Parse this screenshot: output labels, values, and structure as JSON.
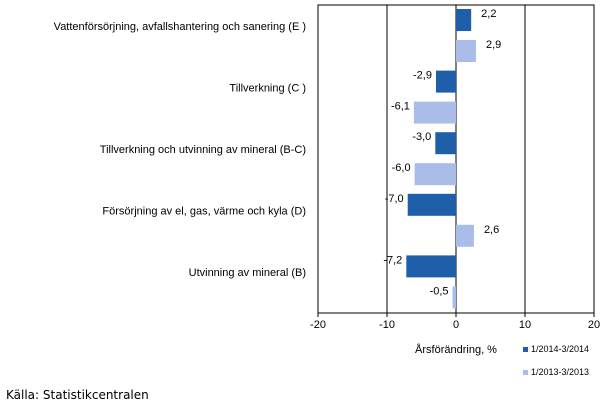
{
  "chart_data": {
    "type": "bar",
    "orientation": "horizontal",
    "categories": [
      "Vattenförsörjning, avfallshantering och sanering (E )",
      "Tillverkning (C )",
      "Tillverkning och utvinning av mineral (B-C)",
      "Försörjning av el, gas, värme och kyla (D)",
      "Utvinning av mineral  (B)"
    ],
    "series": [
      {
        "name": "1/2014-3/2014",
        "color": "#1f5faa",
        "values": [
          2.2,
          -2.9,
          -3.0,
          -7.0,
          -7.2
        ],
        "labels": [
          "2,2",
          "-2,9",
          "-3,0",
          "-7,0",
          "-7,2"
        ]
      },
      {
        "name": "1/2013-3/2013",
        "color": "#a9bde8",
        "values": [
          2.9,
          -6.1,
          -6.0,
          2.6,
          -0.5
        ],
        "labels": [
          "2,9",
          "-6,1",
          "-6,0",
          "2,6",
          "-0,5"
        ]
      }
    ],
    "xlim": [
      -20,
      20
    ],
    "xticks": [
      -20,
      -10,
      0,
      10,
      20
    ],
    "xtick_labels": [
      "-20",
      "-10",
      "0",
      "10",
      "20"
    ],
    "xlabel": "Årsförändring, %",
    "ylabel": "",
    "title": "",
    "grid": "vertical gridlines",
    "legend": "bottom-right"
  },
  "source": "Källa: Statistikcentralen"
}
